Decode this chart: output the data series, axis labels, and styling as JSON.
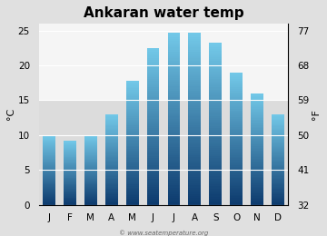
{
  "title": "Ankaran water temp",
  "months": [
    "J",
    "F",
    "M",
    "A",
    "M",
    "J",
    "J",
    "A",
    "S",
    "O",
    "N",
    "D"
  ],
  "values_c": [
    10.0,
    9.2,
    10.0,
    13.0,
    17.8,
    22.5,
    24.7,
    24.7,
    23.2,
    19.0,
    16.0,
    13.0
  ],
  "ylabel_left": "°C",
  "ylabel_right": "°F",
  "yticks_c": [
    0,
    5,
    10,
    15,
    20,
    25
  ],
  "yticks_f": [
    32,
    41,
    50,
    59,
    68,
    77
  ],
  "ylim_c": [
    0,
    26
  ],
  "bar_color_top": "#72C8E8",
  "bar_color_bottom": "#0D3B6E",
  "bg_color": "#e0e0e0",
  "plot_bg_upper": "#f5f5f5",
  "plot_bg_lower": "#dcdcdc",
  "plot_bg_split": 15,
  "watermark": "© www.seatemperature.org",
  "title_fontsize": 11,
  "axis_fontsize": 8,
  "tick_fontsize": 7.5,
  "bar_width": 0.6
}
